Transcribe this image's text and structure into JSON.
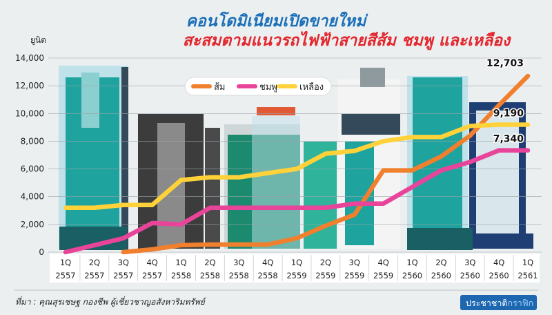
{
  "title_line1": "คอนโดมิเนียมเปิดขายใหม่",
  "title_line2": "สะสมตามแนวรถไฟฟ้าสายสีส้ม ชมพู และเหลือง",
  "source": "ที่มา : คุณสุรเชษฐ กองชีพ ผู้เชี่ยวชาญอสังหาริมทรัพย์",
  "brand": {
    "part1": "ประชาชาติ",
    "part2": "กราฟิก"
  },
  "colors": {
    "orange": "#f07f2e",
    "pink": "#e8449a",
    "yellow": "#ffd23a",
    "title_blue": "#1a6fb8",
    "title_red": "#e3262d",
    "brand_blue": "#1d67b0"
  },
  "chart_data": {
    "type": "line",
    "ylabel": "ยูนิต",
    "ylim": [
      0,
      14000
    ],
    "yticks": [
      "0",
      "2,000",
      "4,000",
      "6,000",
      "8,000",
      "10,000",
      "12,000",
      "14,000"
    ],
    "ytick_values": [
      0,
      2000,
      4000,
      6000,
      8000,
      10000,
      12000,
      14000
    ],
    "categories": [
      [
        "1Q",
        "2557"
      ],
      [
        "2Q",
        "2557"
      ],
      [
        "3Q",
        "2557"
      ],
      [
        "4Q",
        "2557"
      ],
      [
        "1Q",
        "2558"
      ],
      [
        "2Q",
        "2558"
      ],
      [
        "3Q",
        "2558"
      ],
      [
        "4Q",
        "2558"
      ],
      [
        "1Q",
        "2559"
      ],
      [
        "2Q",
        "2559"
      ],
      [
        "3Q",
        "2559"
      ],
      [
        "4Q",
        "2559"
      ],
      [
        "1Q",
        "2560"
      ],
      [
        "2Q",
        "2560"
      ],
      [
        "3Q",
        "2560"
      ],
      [
        "4Q",
        "2560"
      ],
      [
        "1Q",
        "2561"
      ]
    ],
    "legend": {
      "position": "top-center",
      "items": [
        "ส้ม",
        "ชมพู",
        "เหลือง"
      ]
    },
    "series": [
      {
        "name": "ส้ม",
        "color": "#f07f2e",
        "values": [
          null,
          null,
          0,
          200,
          500,
          550,
          550,
          550,
          1000,
          1900,
          2700,
          5900,
          5900,
          6900,
          8400,
          10600,
          12703
        ],
        "end_label": "12,703"
      },
      {
        "name": "ชมพู",
        "color": "#e8449a",
        "values": [
          0,
          500,
          1000,
          2100,
          2000,
          3200,
          3200,
          3200,
          3200,
          3200,
          3500,
          3500,
          4700,
          5900,
          6500,
          7340,
          7340
        ],
        "end_label": "7,340"
      },
      {
        "name": "เหลือง",
        "color": "#ffd23a",
        "values": [
          3200,
          3200,
          3400,
          3400,
          5200,
          5400,
          5400,
          5700,
          6000,
          7100,
          7300,
          8000,
          8300,
          8300,
          9100,
          9190,
          9190
        ],
        "end_label": "9,190"
      }
    ]
  }
}
